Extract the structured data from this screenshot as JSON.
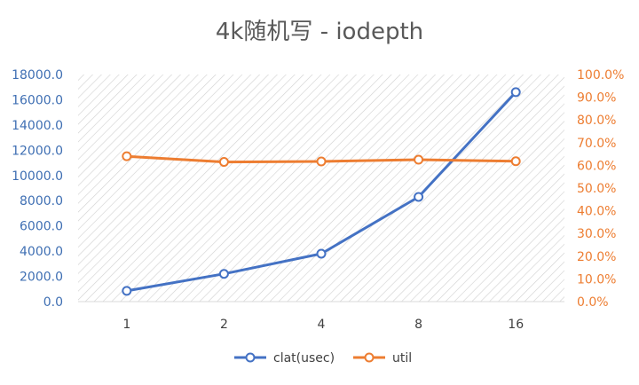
{
  "chart_data": {
    "type": "line",
    "title": "4k随机写 - iodepth",
    "categories": [
      "1",
      "2",
      "4",
      "8",
      "16"
    ],
    "series": [
      {
        "name": "clat(usec)",
        "axis": "left",
        "color": "#4472c4",
        "values": [
          850,
          2200,
          3800,
          8300,
          16600
        ]
      },
      {
        "name": "util",
        "axis": "right",
        "color": "#ed7d31",
        "values": [
          64.0,
          61.5,
          61.7,
          62.5,
          61.8
        ]
      }
    ],
    "y_left": {
      "min": 0,
      "max": 18000,
      "step": 2000,
      "ticks": [
        "0.0",
        "2000.0",
        "4000.0",
        "6000.0",
        "8000.0",
        "10000.0",
        "12000.0",
        "14000.0",
        "16000.0",
        "18000.0"
      ]
    },
    "y_right": {
      "min": 0,
      "max": 100,
      "step": 10,
      "ticks": [
        "0.0%",
        "10.0%",
        "20.0%",
        "30.0%",
        "40.0%",
        "50.0%",
        "60.0%",
        "70.0%",
        "80.0%",
        "90.0%",
        "100.0%"
      ]
    },
    "legend_position": "bottom",
    "plot_background": "diagonal-hatch"
  }
}
